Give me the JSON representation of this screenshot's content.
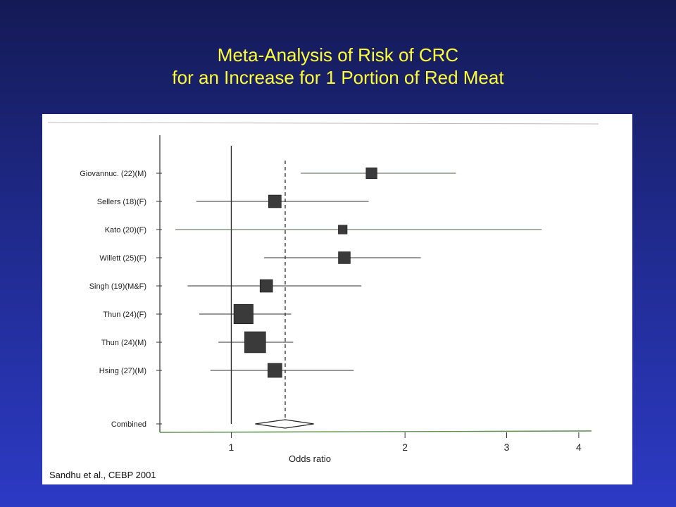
{
  "slide": {
    "title_line1": "Meta-Analysis of Risk of CRC",
    "title_line2": "for an Increase for 1 Portion of Red Meat",
    "citation": "Sandhu et al., CEBP 2001"
  },
  "chart_data": {
    "type": "forest",
    "xlabel": "Odds ratio",
    "x_scale": "log",
    "xlim": [
      0.78,
      4.15
    ],
    "x_ticks": [
      1,
      2,
      3,
      4
    ],
    "reference_line": 1,
    "pooled_line": 1.24,
    "studies": [
      {
        "label": "Giovannuc. (22)(M)",
        "or": 1.75,
        "lo": 1.32,
        "hi": 2.45,
        "weight": 2
      },
      {
        "label": "Sellers (18)(F)",
        "or": 1.19,
        "lo": 0.87,
        "hi": 1.73,
        "weight": 3
      },
      {
        "label": "Kato (20)(F)",
        "or": 1.56,
        "lo": 0.8,
        "hi": 3.45,
        "weight": 1
      },
      {
        "label": "Willett (25)(F)",
        "or": 1.57,
        "lo": 1.14,
        "hi": 2.13,
        "weight": 2.5
      },
      {
        "label": "Singh (19)(M&F)",
        "or": 1.15,
        "lo": 0.84,
        "hi": 1.68,
        "weight": 3
      },
      {
        "label": "Thun (24)(F)",
        "or": 1.05,
        "lo": 0.88,
        "hi": 1.27,
        "weight": 9
      },
      {
        "label": "Thun (24)(M)",
        "or": 1.1,
        "lo": 0.95,
        "hi": 1.28,
        "weight": 11
      },
      {
        "label": "Hsing (27)(M)",
        "or": 1.19,
        "lo": 0.92,
        "hi": 1.63,
        "weight": 4
      }
    ],
    "combined": {
      "label": "Combined",
      "or": 1.24,
      "lo": 1.1,
      "hi": 1.39
    },
    "colors": {
      "ink": "#333333",
      "box": "#3a3a3a",
      "ci_line": "#446644"
    }
  }
}
